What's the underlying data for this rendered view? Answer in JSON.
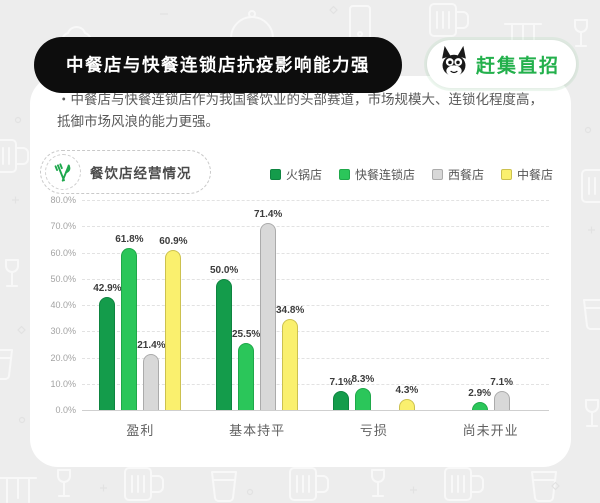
{
  "header": {
    "title": "中餐店与快餐连锁店抗疫影响能力强",
    "logo_text": "赶集直招",
    "logo_color": "#23B04C"
  },
  "intro": {
    "text": "・中餐店与快餐连锁店作为我国餐饮业的头部赛道，市场规模大、连锁化程度高，抵御市场风浪的能力更强。"
  },
  "chart_header": {
    "badge_label": "餐饮店经营情况"
  },
  "chart_data": {
    "type": "bar",
    "title": "餐饮店经营情况",
    "categories": [
      "盈利",
      "基本持平",
      "亏损",
      "尚未开业"
    ],
    "series": [
      {
        "name": "火锅店",
        "color": "#149C4B",
        "border": "#0E8440",
        "values": [
          42.9,
          50.0,
          7.1,
          0
        ]
      },
      {
        "name": "快餐连锁店",
        "color": "#2BC65A",
        "border": "#1FA84A",
        "values": [
          61.8,
          25.5,
          8.3,
          2.9
        ]
      },
      {
        "name": "西餐店",
        "color": "#D8D8D8",
        "border": "#ABABAB",
        "values": [
          21.4,
          71.4,
          0,
          7.1
        ]
      },
      {
        "name": "中餐店",
        "color": "#FAF06E",
        "border": "#CCC14F",
        "values": [
          60.9,
          34.8,
          4.3,
          0
        ]
      }
    ],
    "xlabel": "",
    "ylabel": "",
    "ylim": [
      0,
      80
    ],
    "y_ticks": [
      0,
      10,
      20,
      30,
      40,
      50,
      60,
      70,
      80
    ],
    "y_tick_format": "percent_one_decimal",
    "grid": "dashed",
    "legend_position": "top-right",
    "value_labels": "above_bars"
  },
  "decor": {
    "background_icons": [
      "chef-hat-icon",
      "cloche-icon",
      "beer-mug-icon",
      "paper-cup-icon",
      "dining-table-icon",
      "wine-glass-icon",
      "phone-icon"
    ]
  }
}
